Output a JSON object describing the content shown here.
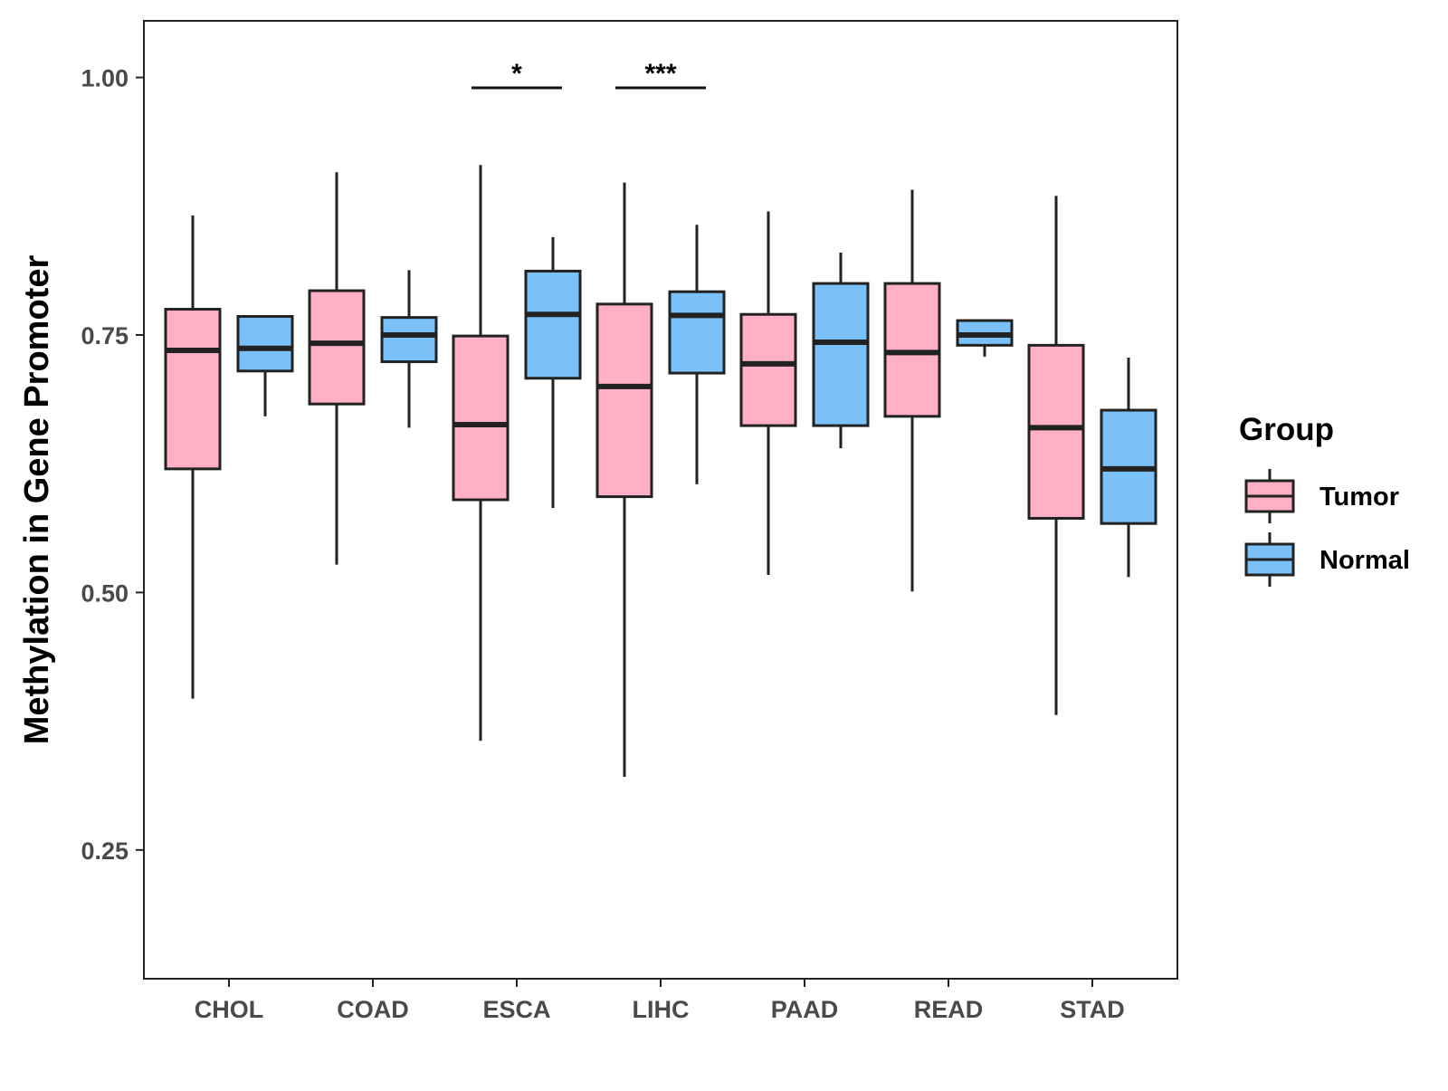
{
  "chart_data": {
    "type": "boxplot",
    "title": "",
    "xlabel": "",
    "ylabel": "Methylation in Gene Promoter",
    "ylim": [
      0.125,
      1.055
    ],
    "yticks": [
      0.25,
      0.5,
      0.75,
      1.0
    ],
    "ytick_labels": [
      "0.25",
      "0.50",
      "0.75",
      "1.00"
    ],
    "categories": [
      "CHOL",
      "COAD",
      "ESCA",
      "LIHC",
      "PAAD",
      "READ",
      "STAD"
    ],
    "series": [
      {
        "name": "Tumor",
        "color": "#FFB0C4",
        "boxes": [
          {
            "category": "CHOL",
            "min": 0.397,
            "q1": 0.62,
            "median": 0.735,
            "q3": 0.775,
            "max": 0.866
          },
          {
            "category": "COAD",
            "min": 0.527,
            "q1": 0.683,
            "median": 0.742,
            "q3": 0.793,
            "max": 0.908
          },
          {
            "category": "ESCA",
            "min": 0.356,
            "q1": 0.59,
            "median": 0.663,
            "q3": 0.749,
            "max": 0.915
          },
          {
            "category": "LIHC",
            "min": 0.321,
            "q1": 0.593,
            "median": 0.7,
            "q3": 0.78,
            "max": 0.898
          },
          {
            "category": "PAAD",
            "min": 0.517,
            "q1": 0.662,
            "median": 0.722,
            "q3": 0.77,
            "max": 0.87
          },
          {
            "category": "READ",
            "min": 0.501,
            "q1": 0.671,
            "median": 0.733,
            "q3": 0.8,
            "max": 0.891
          },
          {
            "category": "STAD",
            "min": 0.381,
            "q1": 0.572,
            "median": 0.66,
            "q3": 0.74,
            "max": 0.885
          }
        ]
      },
      {
        "name": "Normal",
        "color": "#79C1F8",
        "boxes": [
          {
            "category": "CHOL",
            "min": 0.671,
            "q1": 0.715,
            "median": 0.737,
            "q3": 0.768,
            "max": 0.768
          },
          {
            "category": "COAD",
            "min": 0.66,
            "q1": 0.724,
            "median": 0.75,
            "q3": 0.767,
            "max": 0.813
          },
          {
            "category": "ESCA",
            "min": 0.582,
            "q1": 0.708,
            "median": 0.77,
            "q3": 0.812,
            "max": 0.845
          },
          {
            "category": "LIHC",
            "min": 0.605,
            "q1": 0.713,
            "median": 0.769,
            "q3": 0.792,
            "max": 0.857
          },
          {
            "category": "PAAD",
            "min": 0.64,
            "q1": 0.662,
            "median": 0.743,
            "q3": 0.8,
            "max": 0.83
          },
          {
            "category": "READ",
            "min": 0.729,
            "q1": 0.74,
            "median": 0.75,
            "q3": 0.764,
            "max": 0.764
          },
          {
            "category": "STAD",
            "min": 0.515,
            "q1": 0.567,
            "median": 0.62,
            "q3": 0.677,
            "max": 0.728
          }
        ]
      }
    ],
    "significance": [
      {
        "category": "ESCA",
        "label": "*",
        "y": 0.99
      },
      {
        "category": "LIHC",
        "label": "***",
        "y": 0.99
      }
    ],
    "legend": {
      "title": "Group",
      "position": "right",
      "entries": [
        "Tumor",
        "Normal"
      ]
    },
    "grid": false
  }
}
